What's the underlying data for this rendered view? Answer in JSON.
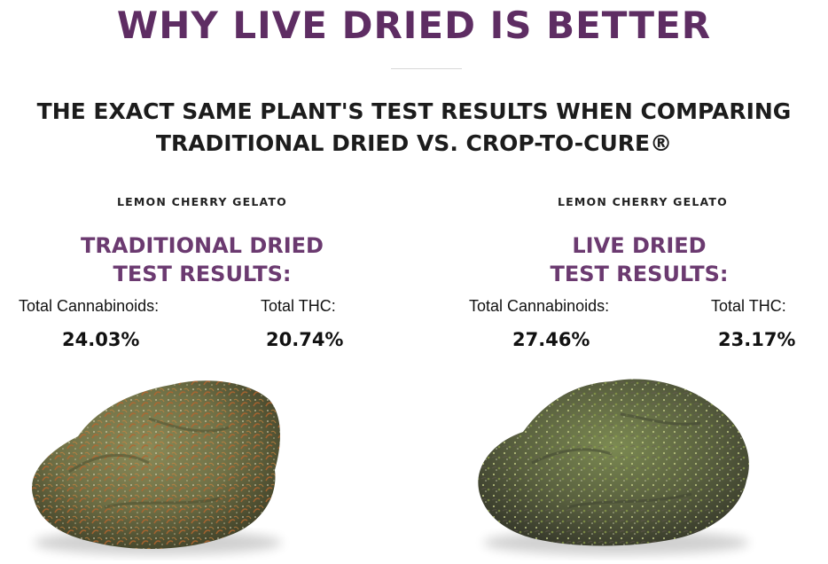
{
  "header": {
    "title": "WHY LIVE DRIED IS BETTER",
    "subtitle_line1": "THE EXACT SAME PLANT'S TEST RESULTS WHEN COMPARING",
    "subtitle_line2": "TRADITIONAL DRIED VS. CROP-TO-CURE®"
  },
  "panels": [
    {
      "strain": "LEMON CHERRY GELATO",
      "title_line1": "TRADITIONAL DRIED",
      "title_line2": "TEST RESULTS:",
      "cannabinoids_label": "Total Cannabinoids:",
      "cannabinoids_value": "24.03%",
      "thc_label": "Total THC:",
      "thc_value": "20.74%"
    },
    {
      "strain": "LEMON CHERRY GELATO",
      "title_line1": "LIVE DRIED",
      "title_line2": "TEST RESULTS:",
      "cannabinoids_label": "Total Cannabinoids:",
      "cannabinoids_value": "27.46%",
      "thc_label": "Total THC:",
      "thc_value": "23.17%"
    }
  ],
  "colors": {
    "title": "#5e2d63",
    "section_title": "#6b3a70",
    "traditional_bud_base": "#6f7046",
    "traditional_bud_accent": "#b5652e",
    "live_bud_base": "#59603f",
    "live_bud_accent": "#8fa24b"
  }
}
